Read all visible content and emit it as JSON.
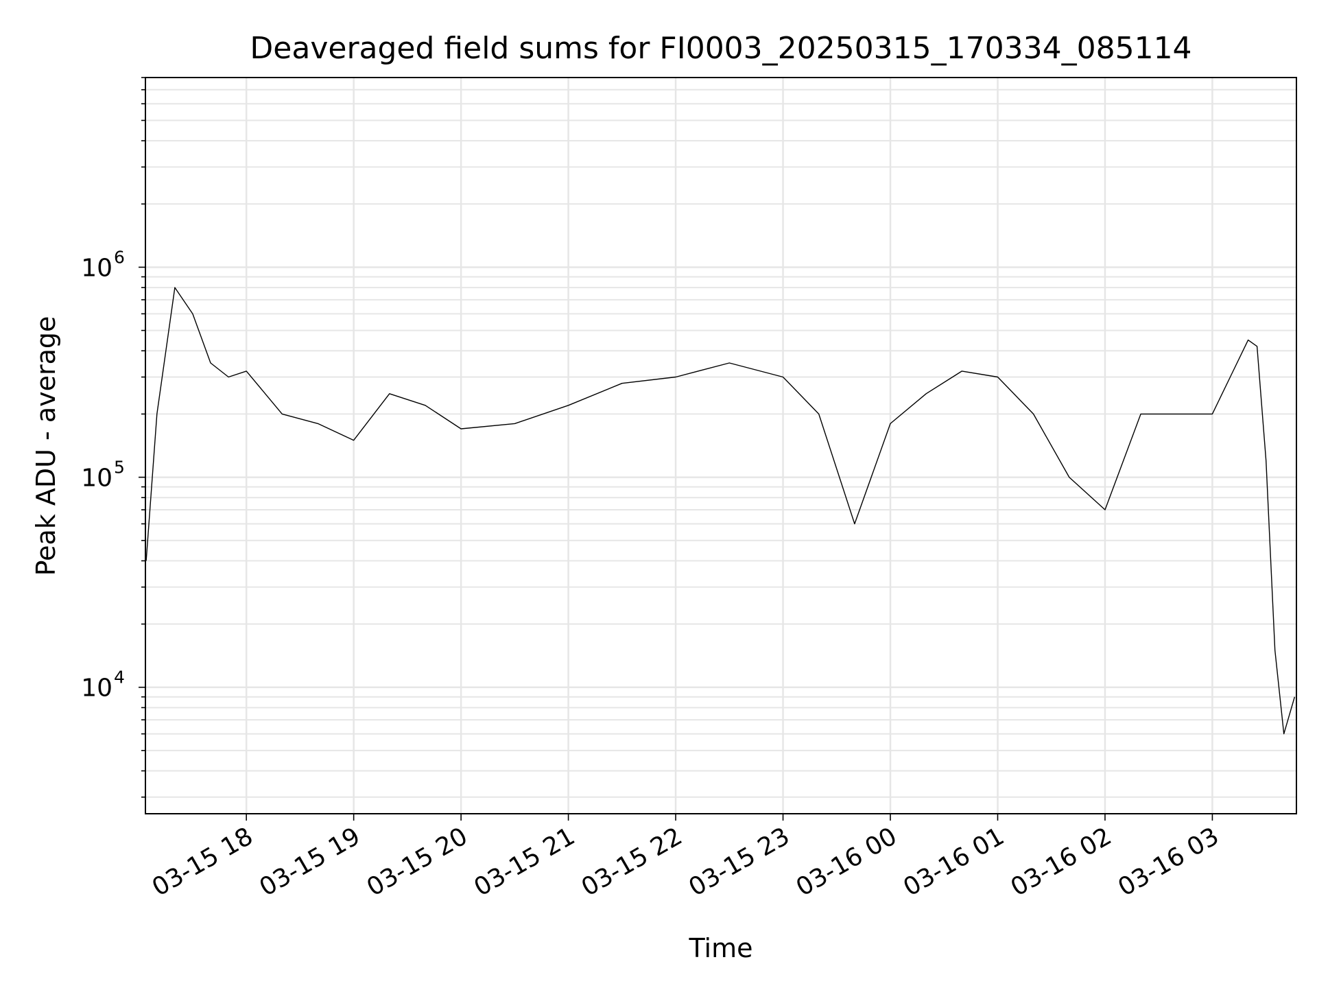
{
  "chart_data": {
    "type": "line",
    "title": "Deaveraged field sums for FI0003_20250315_170334_085114",
    "xlabel": "Time",
    "ylabel": "Peak ADU - average",
    "y_scale": "log",
    "ylim": [
      2500,
      8000000
    ],
    "xlim": [
      "2025-03-15 17:03:34",
      "2025-03-16 03:47:00"
    ],
    "x_ticks": [
      {
        "value": "2025-03-15 18:00",
        "label": "03-15 18"
      },
      {
        "value": "2025-03-15 19:00",
        "label": "03-15 19"
      },
      {
        "value": "2025-03-15 20:00",
        "label": "03-15 20"
      },
      {
        "value": "2025-03-15 21:00",
        "label": "03-15 21"
      },
      {
        "value": "2025-03-15 22:00",
        "label": "03-15 22"
      },
      {
        "value": "2025-03-15 23:00",
        "label": "03-15 23"
      },
      {
        "value": "2025-03-16 00:00",
        "label": "03-16 00"
      },
      {
        "value": "2025-03-16 01:00",
        "label": "03-16 01"
      },
      {
        "value": "2025-03-16 02:00",
        "label": "03-16 02"
      },
      {
        "value": "2025-03-16 03:00",
        "label": "03-16 03"
      }
    ],
    "y_ticks": [
      {
        "value": 10000,
        "base": "10",
        "exp": "4"
      },
      {
        "value": 100000,
        "base": "10",
        "exp": "5"
      },
      {
        "value": 1000000,
        "base": "10",
        "exp": "6"
      }
    ],
    "grid": true,
    "line_color": "#000000",
    "series": [
      {
        "x": [
          "2025-03-15 17:04",
          "2025-03-15 17:10",
          "2025-03-15 17:20",
          "2025-03-15 17:30",
          "2025-03-15 17:40",
          "2025-03-15 17:50",
          "2025-03-15 18:00",
          "2025-03-15 18:20",
          "2025-03-15 18:40",
          "2025-03-15 19:00",
          "2025-03-15 19:20",
          "2025-03-15 19:40",
          "2025-03-15 20:00",
          "2025-03-15 20:30",
          "2025-03-15 21:00",
          "2025-03-15 21:30",
          "2025-03-15 22:00",
          "2025-03-15 22:30",
          "2025-03-15 23:00",
          "2025-03-15 23:20",
          "2025-03-15 23:40",
          "2025-03-16 00:00",
          "2025-03-16 00:20",
          "2025-03-16 00:40",
          "2025-03-16 01:00",
          "2025-03-16 01:20",
          "2025-03-16 01:40",
          "2025-03-16 02:00",
          "2025-03-16 02:20",
          "2025-03-16 02:40",
          "2025-03-16 03:00",
          "2025-03-16 03:10",
          "2025-03-16 03:20",
          "2025-03-16 03:25",
          "2025-03-16 03:30",
          "2025-03-16 03:35",
          "2025-03-16 03:40",
          "2025-03-16 03:46"
        ],
        "y": [
          40000,
          200000,
          800000,
          600000,
          350000,
          300000,
          320000,
          200000,
          180000,
          150000,
          250000,
          220000,
          170000,
          180000,
          220000,
          280000,
          300000,
          350000,
          300000,
          200000,
          60000,
          180000,
          250000,
          320000,
          300000,
          200000,
          100000,
          70000,
          200000,
          200000,
          200000,
          300000,
          450000,
          420000,
          120000,
          15000,
          6000,
          9000
        ]
      }
    ]
  }
}
